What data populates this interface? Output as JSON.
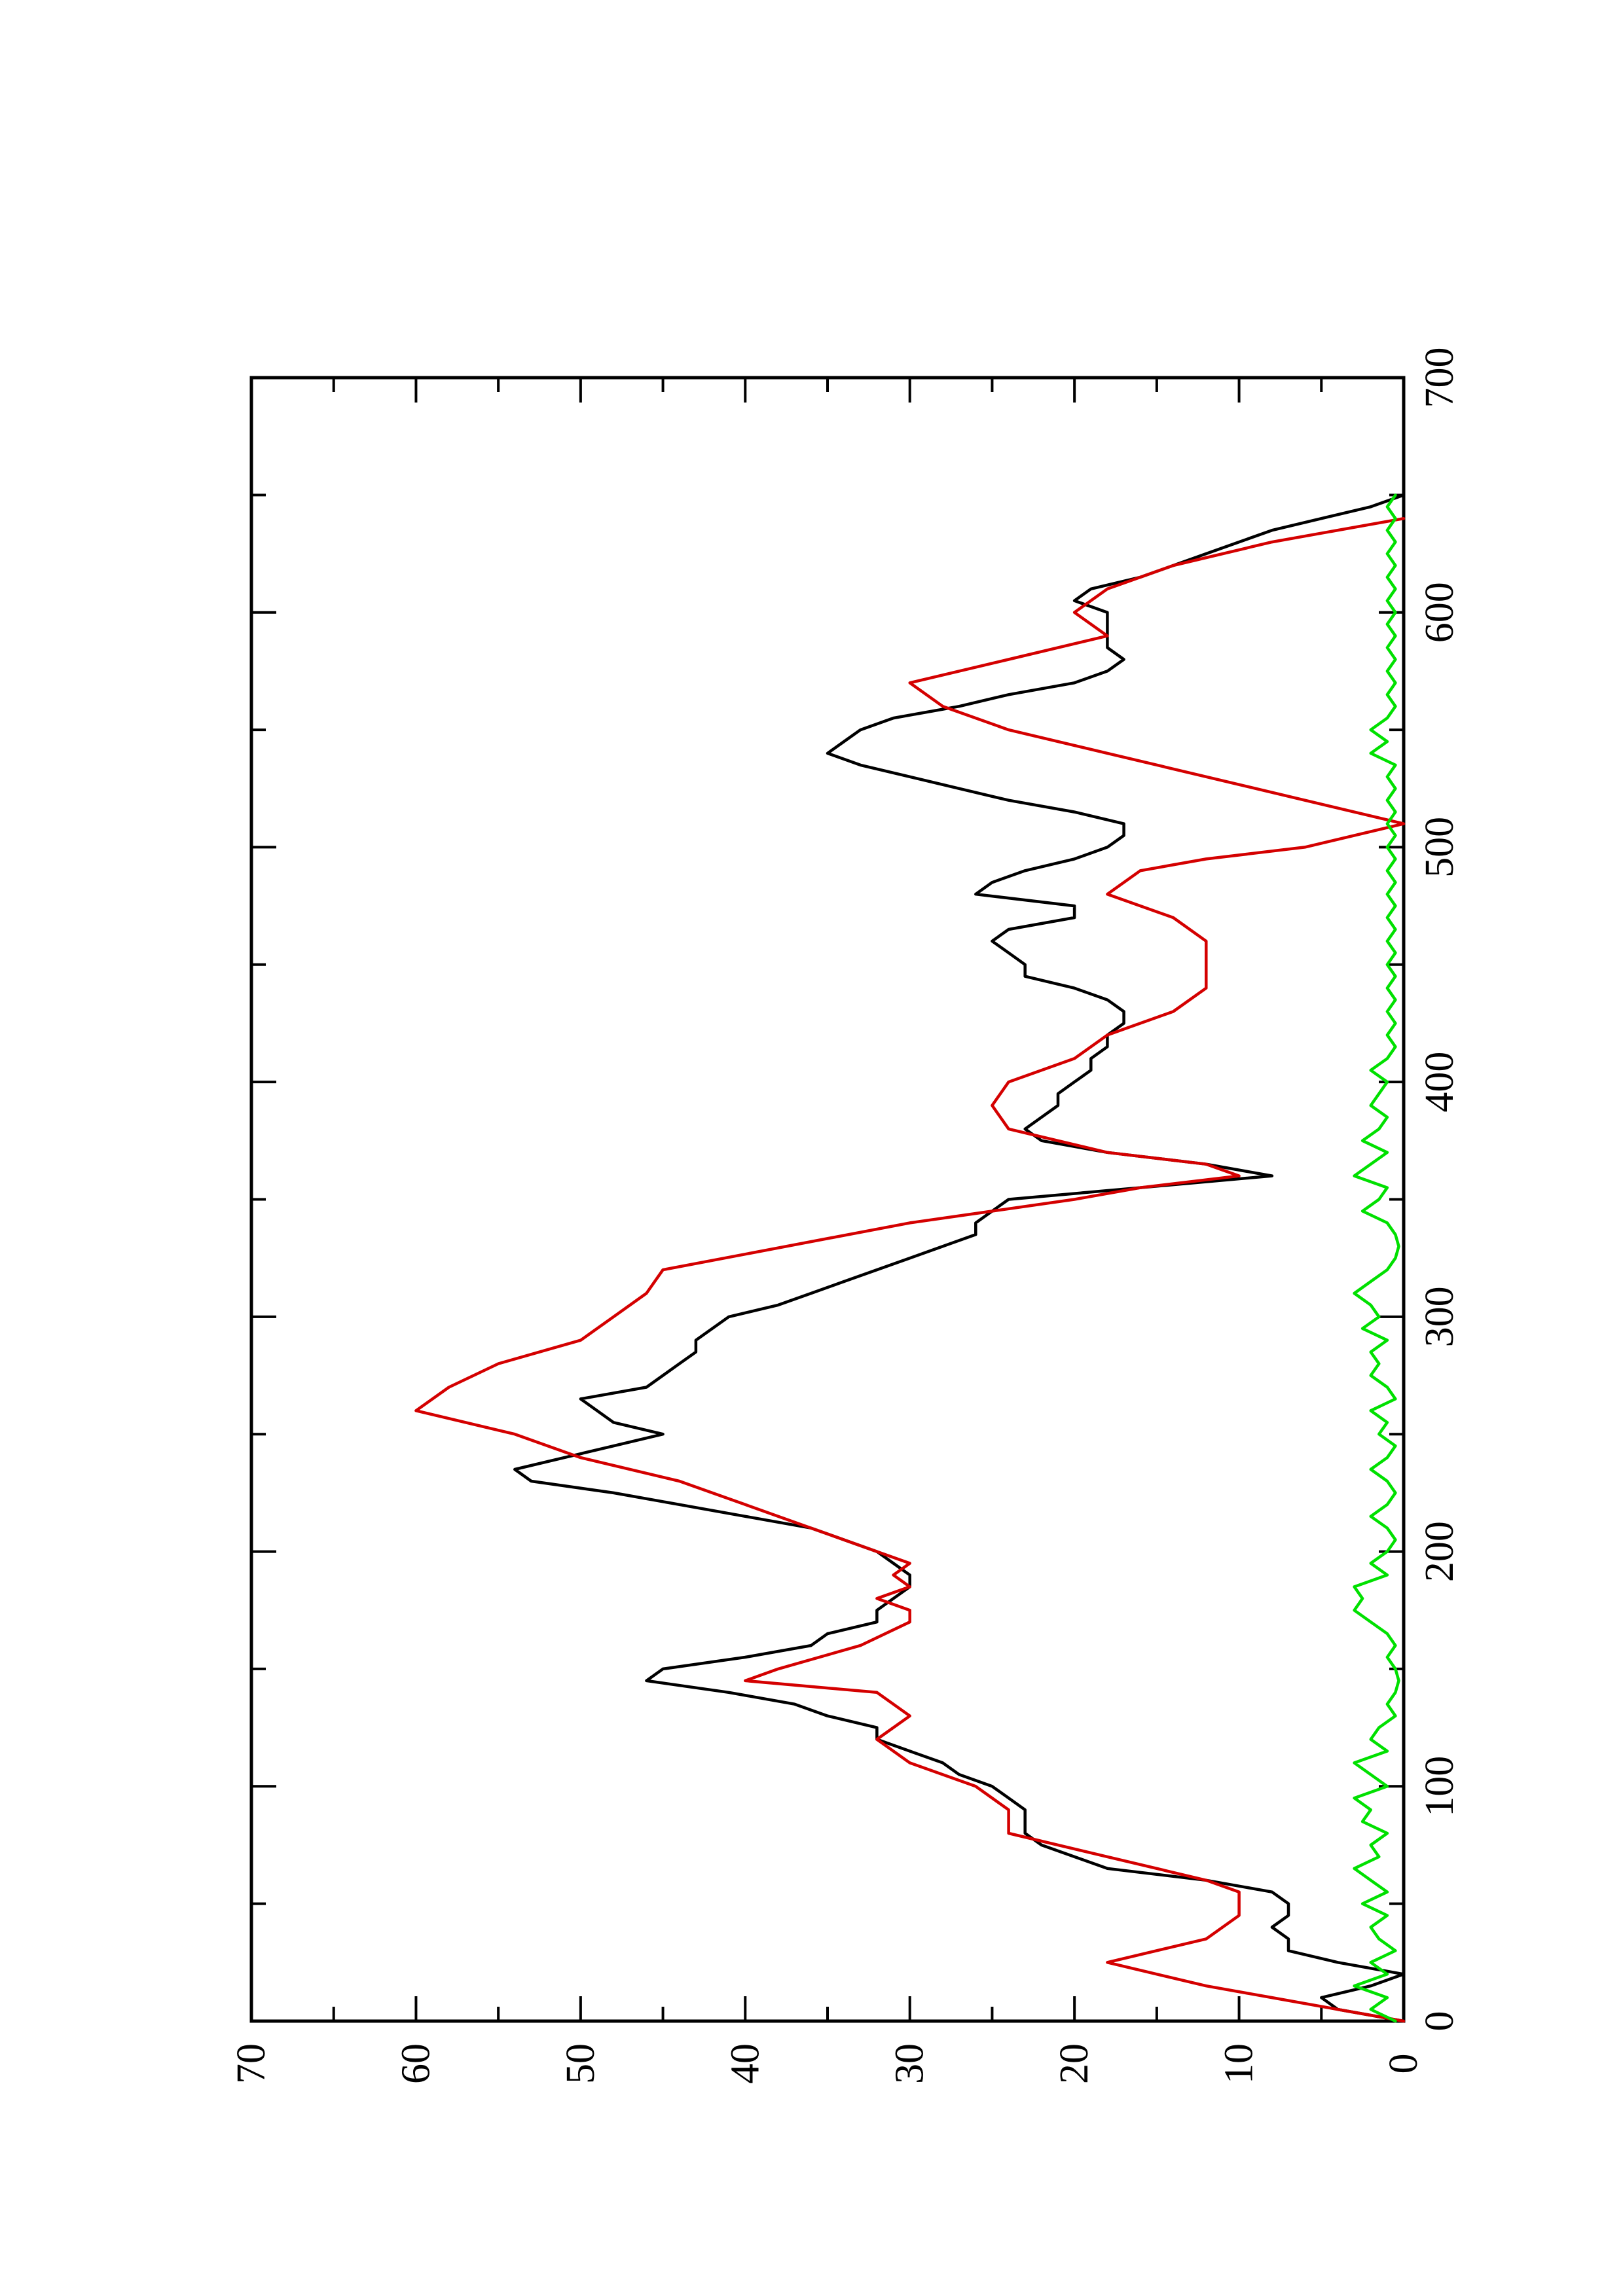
{
  "chart_data": {
    "type": "line",
    "title": "",
    "xlabel": "",
    "ylabel": "",
    "orientation": "rotated-90-counterclockwise",
    "xlim": [
      0,
      700
    ],
    "ylim": [
      0,
      70
    ],
    "x_ticks": [
      "0",
      "100",
      "200",
      "300",
      "400",
      "500",
      "600",
      "700"
    ],
    "y_ticks": [
      "0",
      "10",
      "20",
      "30",
      "40",
      "50",
      "60",
      "70"
    ],
    "grid": false,
    "legend": "none",
    "series": [
      {
        "color": "#000000",
        "x": [
          0,
          5,
          10,
          15,
          20,
          25,
          30,
          35,
          40,
          45,
          50,
          55,
          60,
          65,
          70,
          75,
          80,
          85,
          90,
          95,
          100,
          105,
          110,
          115,
          120,
          125,
          130,
          135,
          140,
          145,
          150,
          155,
          160,
          165,
          170,
          175,
          180,
          185,
          190,
          195,
          200,
          205,
          210,
          215,
          220,
          225,
          230,
          235,
          240,
          245,
          250,
          255,
          260,
          265,
          270,
          275,
          280,
          285,
          290,
          295,
          300,
          305,
          310,
          315,
          320,
          325,
          330,
          335,
          340,
          345,
          350,
          355,
          360,
          365,
          370,
          375,
          380,
          385,
          390,
          395,
          400,
          405,
          410,
          415,
          420,
          425,
          430,
          435,
          440,
          445,
          450,
          455,
          460,
          465,
          470,
          475,
          480,
          485,
          490,
          495,
          500,
          505,
          510,
          515,
          520,
          525,
          530,
          535,
          540,
          545,
          550,
          555,
          560,
          565,
          570,
          575,
          580,
          585,
          590,
          595,
          600,
          605,
          610,
          615,
          620,
          625,
          630,
          635,
          640,
          645,
          650
        ],
        "y": [
          0,
          4,
          5,
          2,
          0,
          4,
          7,
          7,
          8,
          7,
          7,
          8,
          12,
          18,
          20,
          22,
          23,
          23,
          23,
          24,
          25,
          27,
          28,
          30,
          32,
          32,
          35,
          37,
          41,
          46,
          45,
          40,
          36,
          35,
          32,
          32,
          31,
          30,
          30,
          31,
          32,
          34,
          36,
          40,
          44,
          48,
          53,
          54,
          51,
          48,
          45,
          48,
          49,
          50,
          46,
          45,
          44,
          43,
          43,
          42,
          41,
          38,
          36,
          34,
          32,
          30,
          28,
          26,
          26,
          25,
          24,
          16,
          8,
          12,
          18,
          22,
          23,
          22,
          21,
          21,
          20,
          19,
          19,
          18,
          18,
          17,
          17,
          18,
          20,
          23,
          23,
          24,
          25,
          24,
          20,
          20,
          26,
          25,
          23,
          20,
          18,
          17,
          17,
          20,
          24,
          27,
          30,
          33,
          35,
          34,
          33,
          31,
          27,
          24,
          20,
          18,
          17,
          18,
          18,
          18,
          18,
          20,
          19,
          16,
          14,
          12,
          10,
          8,
          5,
          2,
          0
        ]
      },
      {
        "color": "#d40000",
        "x": [
          0,
          5,
          10,
          15,
          25,
          35,
          45,
          55,
          60,
          70,
          80,
          90,
          100,
          110,
          120,
          130,
          140,
          145,
          150,
          160,
          170,
          175,
          180,
          185,
          190,
          195,
          200,
          210,
          220,
          230,
          240,
          250,
          260,
          270,
          280,
          290,
          300,
          310,
          320,
          340,
          350,
          355,
          360,
          365,
          370,
          380,
          390,
          400,
          410,
          420,
          430,
          440,
          450,
          460,
          470,
          480,
          490,
          495,
          500,
          510,
          520,
          530,
          540,
          550,
          560,
          570,
          580,
          590,
          600,
          610,
          620,
          630,
          640
        ],
        "y": [
          0,
          4,
          8,
          12,
          18,
          12,
          10,
          10,
          12,
          18,
          24,
          24,
          26,
          30,
          32,
          30,
          32,
          40,
          38,
          33,
          30,
          30,
          32,
          30,
          31,
          30,
          32,
          36,
          40,
          44,
          50,
          54,
          60,
          58,
          55,
          50,
          48,
          46,
          45,
          30,
          20,
          16,
          10,
          12,
          18,
          24,
          25,
          24,
          20,
          18,
          14,
          12,
          12,
          12,
          14,
          18,
          16,
          12,
          6,
          0,
          6,
          12,
          18,
          24,
          28,
          30,
          24,
          18,
          20,
          18,
          14,
          8,
          0
        ]
      },
      {
        "color": "#00e000",
        "x": [
          0,
          5,
          10,
          15,
          20,
          25,
          30,
          35,
          40,
          45,
          50,
          55,
          60,
          65,
          70,
          75,
          80,
          85,
          90,
          95,
          100,
          105,
          110,
          115,
          120,
          125,
          130,
          135,
          140,
          145,
          150,
          155,
          160,
          165,
          170,
          175,
          180,
          185,
          190,
          195,
          200,
          205,
          210,
          215,
          220,
          225,
          230,
          235,
          240,
          245,
          250,
          255,
          260,
          265,
          270,
          275,
          280,
          285,
          290,
          295,
          300,
          305,
          310,
          315,
          320,
          325,
          330,
          335,
          340,
          345,
          350,
          355,
          360,
          365,
          370,
          375,
          380,
          385,
          390,
          395,
          400,
          405,
          410,
          415,
          420,
          425,
          430,
          435,
          440,
          445,
          450,
          455,
          460,
          465,
          470,
          475,
          480,
          485,
          490,
          495,
          500,
          505,
          510,
          515,
          520,
          525,
          530,
          535,
          540,
          545,
          550,
          555,
          560,
          565,
          570,
          575,
          580,
          585,
          590,
          595,
          600,
          605,
          610,
          615,
          620,
          625,
          630,
          635,
          640,
          645,
          650
        ],
        "y": [
          0.5,
          2,
          1,
          3,
          1,
          2,
          0.5,
          1.5,
          2,
          1,
          2.5,
          1,
          2,
          3,
          1.5,
          2,
          1,
          2.5,
          2,
          3,
          1,
          2,
          3,
          1,
          2,
          1.5,
          0.5,
          1,
          0.5,
          0.3,
          0.5,
          1,
          0.5,
          1,
          2,
          3,
          2.5,
          3,
          1,
          2,
          1,
          0.5,
          1,
          2,
          1,
          0.5,
          1,
          2,
          1,
          0.5,
          1.5,
          1,
          2,
          0.5,
          1,
          2,
          1.5,
          2,
          1,
          2.5,
          1.5,
          2,
          3,
          2,
          1,
          0.5,
          0.3,
          0.5,
          1,
          2.5,
          1.5,
          1,
          3,
          2,
          1,
          2.5,
          1.5,
          1,
          2,
          1.5,
          1,
          2,
          1,
          0.5,
          1,
          0.5,
          1,
          0.5,
          1,
          0.5,
          1,
          0.5,
          1,
          0.5,
          1,
          0.5,
          1,
          0.5,
          1,
          0.5,
          1,
          0.5,
          1,
          0.5,
          1,
          0.5,
          1,
          0.5,
          2,
          1,
          2,
          1,
          0.5,
          1,
          0.5,
          1,
          0.5,
          1,
          0.5,
          1,
          0.5,
          1,
          0.5,
          1,
          0.5,
          1,
          0.5,
          1,
          0.5,
          1,
          0.5
        ]
      }
    ]
  }
}
